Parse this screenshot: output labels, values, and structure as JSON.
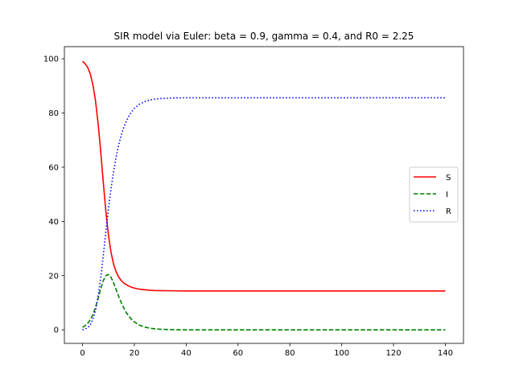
{
  "chart_data": {
    "type": "line",
    "title": "SIR model via Euler: beta = 0.9, gamma = 0.4, and R0 = 2.25",
    "xlabel": "",
    "ylabel": "",
    "xlim": [
      -7,
      147
    ],
    "ylim": [
      -5,
      104.5
    ],
    "xticks": [
      0,
      20,
      40,
      60,
      80,
      100,
      120,
      140
    ],
    "yticks": [
      0,
      20,
      40,
      60,
      80,
      100
    ],
    "grid": false,
    "legend_position": "center-right",
    "series": [
      {
        "name": "S",
        "color": "#ff0000",
        "style": "solid",
        "points": [
          [
            0,
            99.1
          ],
          [
            1,
            98.2
          ],
          [
            2,
            96.8
          ],
          [
            3,
            94.4
          ],
          [
            4,
            90.5
          ],
          [
            5,
            84.6
          ],
          [
            6,
            76.3
          ],
          [
            7,
            66.0
          ],
          [
            8,
            54.6
          ],
          [
            9,
            43.8
          ],
          [
            10,
            35.0
          ],
          [
            11,
            28.6
          ],
          [
            12,
            24.2
          ],
          [
            13,
            21.3
          ],
          [
            14,
            19.4
          ],
          [
            15,
            18.1
          ],
          [
            16,
            17.2
          ],
          [
            17,
            16.6
          ],
          [
            18,
            16.1
          ],
          [
            19,
            15.7
          ],
          [
            20,
            15.4
          ],
          [
            22,
            15.0
          ],
          [
            24,
            14.8
          ],
          [
            26,
            14.6
          ],
          [
            28,
            14.5
          ],
          [
            30,
            14.45
          ],
          [
            35,
            14.4
          ],
          [
            40,
            14.35
          ],
          [
            60,
            14.35
          ],
          [
            80,
            14.35
          ],
          [
            100,
            14.35
          ],
          [
            120,
            14.35
          ],
          [
            140,
            14.35
          ]
        ]
      },
      {
        "name": "I",
        "color": "#008000",
        "style": "dashed",
        "points": [
          [
            0,
            0.9
          ],
          [
            1,
            1.5
          ],
          [
            2,
            2.4
          ],
          [
            3,
            3.7
          ],
          [
            4,
            5.6
          ],
          [
            5,
            8.2
          ],
          [
            6,
            11.5
          ],
          [
            7,
            15.0
          ],
          [
            8,
            18.1
          ],
          [
            9,
            20.0
          ],
          [
            10,
            20.4
          ],
          [
            11,
            19.4
          ],
          [
            12,
            17.3
          ],
          [
            13,
            14.8
          ],
          [
            14,
            12.2
          ],
          [
            15,
            9.9
          ],
          [
            16,
            7.9
          ],
          [
            17,
            6.2
          ],
          [
            18,
            4.9
          ],
          [
            19,
            3.8
          ],
          [
            20,
            2.9
          ],
          [
            22,
            1.7
          ],
          [
            24,
            1.0
          ],
          [
            26,
            0.6
          ],
          [
            28,
            0.35
          ],
          [
            30,
            0.2
          ],
          [
            35,
            0.05
          ],
          [
            40,
            0.0
          ],
          [
            60,
            0.0
          ],
          [
            80,
            0.0
          ],
          [
            100,
            0.0
          ],
          [
            120,
            0.0
          ],
          [
            140,
            0.0
          ]
        ]
      },
      {
        "name": "R",
        "color": "#0000ff",
        "style": "dotted",
        "points": [
          [
            0,
            0.0
          ],
          [
            1,
            0.3
          ],
          [
            2,
            0.8
          ],
          [
            3,
            1.9
          ],
          [
            4,
            3.9
          ],
          [
            5,
            7.2
          ],
          [
            6,
            12.2
          ],
          [
            7,
            19.0
          ],
          [
            8,
            27.3
          ],
          [
            9,
            36.2
          ],
          [
            10,
            44.6
          ],
          [
            11,
            52.0
          ],
          [
            12,
            58.5
          ],
          [
            13,
            63.9
          ],
          [
            14,
            68.4
          ],
          [
            15,
            72.0
          ],
          [
            16,
            74.9
          ],
          [
            17,
            77.2
          ],
          [
            18,
            79.0
          ],
          [
            19,
            80.5
          ],
          [
            20,
            81.7
          ],
          [
            22,
            83.3
          ],
          [
            24,
            84.2
          ],
          [
            26,
            84.8
          ],
          [
            28,
            85.15
          ],
          [
            30,
            85.35
          ],
          [
            35,
            85.55
          ],
          [
            40,
            85.65
          ],
          [
            60,
            85.65
          ],
          [
            80,
            85.65
          ],
          [
            100,
            85.65
          ],
          [
            120,
            85.65
          ],
          [
            140,
            85.65
          ]
        ]
      }
    ]
  }
}
